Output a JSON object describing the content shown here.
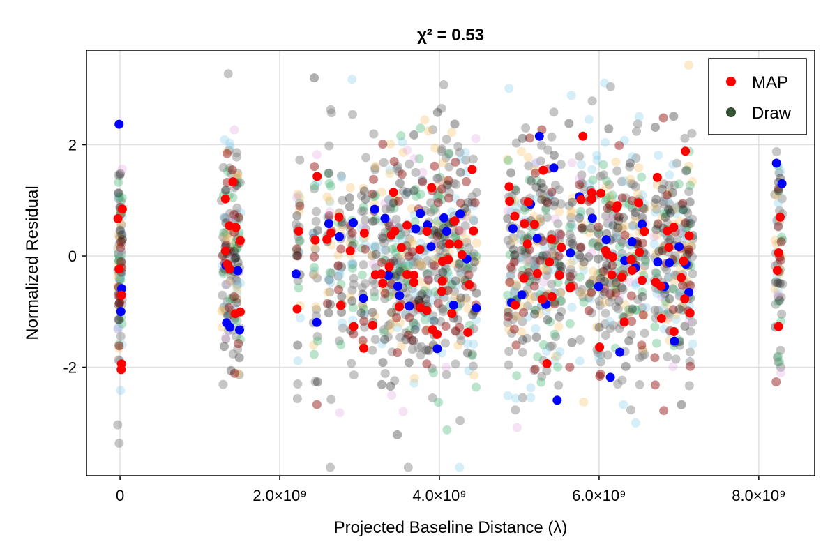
{
  "chart_data": {
    "type": "scatter",
    "title": "χ² = 0.53",
    "xlabel": "Projected Baseline Distance (λ)",
    "ylabel": "Normalized Residual",
    "xlim": [
      -420000000,
      8700000000
    ],
    "ylim": [
      -3.95,
      3.7
    ],
    "x_ticks": [
      {
        "value": 0,
        "label": "0"
      },
      {
        "value": 2000000000,
        "label": "2.0×10⁹"
      },
      {
        "value": 4000000000,
        "label": "4.0×10⁹"
      },
      {
        "value": 6000000000,
        "label": "6.0×10⁹"
      },
      {
        "value": 8000000000,
        "label": "8.0×10⁹"
      }
    ],
    "y_ticks": [
      {
        "value": -2,
        "label": "-2"
      },
      {
        "value": 0,
        "label": "0"
      },
      {
        "value": 2,
        "label": "2"
      }
    ],
    "grid": true,
    "legend_position": "top-right",
    "baseline_clusters": [
      0,
      1300000000,
      1350000000,
      1400000000,
      1450000000,
      1480000000,
      2230000000,
      2450000000,
      2620000000,
      2760000000,
      2900000000,
      3050000000,
      3180000000,
      3300000000,
      3380000000,
      3450000000,
      3520000000,
      3600000000,
      3680000000,
      3760000000,
      3840000000,
      3920000000,
      4000000000,
      4050000000,
      4100000000,
      4180000000,
      4260000000,
      4350000000,
      4440000000,
      4880000000,
      4950000000,
      5050000000,
      5120000000,
      5200000000,
      5280000000,
      5360000000,
      5430000000,
      5500000000,
      5650000000,
      5780000000,
      5900000000,
      6000000000,
      6080000000,
      6150000000,
      6230000000,
      6310000000,
      6400000000,
      6480000000,
      6560000000,
      6720000000,
      6800000000,
      6870000000,
      6950000000,
      7030000000,
      7100000000,
      7150000000,
      8230000000,
      8270000000
    ],
    "series": [
      {
        "name": "MAP",
        "color": "#ff0000",
        "opacity": 1.0,
        "points_per_cluster": 2,
        "spread": 0.9
      },
      {
        "name": "Draw",
        "color": "#2f4f2f",
        "opacity": 1.0,
        "points_per_cluster": 0,
        "spread": 0.9
      }
    ],
    "extra_series": [
      {
        "color": "#0000ff",
        "opacity": 1.0,
        "points_per_cluster": 1,
        "spread": 0.9
      },
      {
        "color": "#808080",
        "opacity": 0.45,
        "points_per_cluster": 12,
        "spread": 1.1
      },
      {
        "color": "#87ceeb",
        "opacity": 0.35,
        "points_per_cluster": 4,
        "spread": 1.0
      },
      {
        "color": "#f5c26b",
        "opacity": 0.35,
        "points_per_cluster": 4,
        "spread": 1.0
      },
      {
        "color": "#3cb371",
        "opacity": 0.35,
        "points_per_cluster": 4,
        "spread": 1.0
      },
      {
        "color": "#8b0000",
        "opacity": 0.45,
        "points_per_cluster": 3,
        "spread": 1.0
      },
      {
        "color": "#1a1a1a",
        "opacity": 0.35,
        "points_per_cluster": 4,
        "spread": 1.0
      },
      {
        "color": "#dda0dd",
        "opacity": 0.3,
        "points_per_cluster": 1,
        "spread": 1.2
      }
    ]
  }
}
